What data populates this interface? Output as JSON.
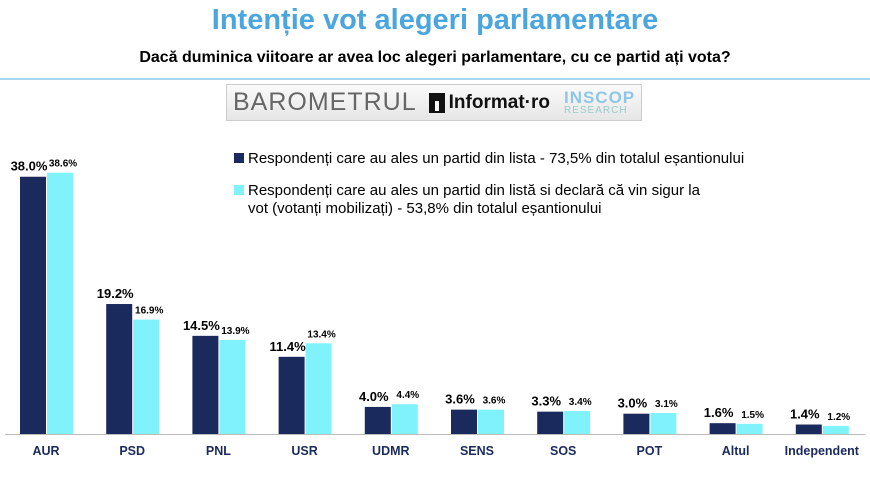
{
  "header": {
    "title": "Intenție vot alegeri parlamentare",
    "subtitle": "Dacă duminica viitoare ar avea loc alegeri parlamentare, cu ce partid ați vota?"
  },
  "logo": {
    "text1": "BAROMETRUL",
    "text2": "Informat·ro",
    "text3": "INSCOP",
    "text4": "RESEARCH"
  },
  "colors": {
    "series1": "#1b2a5c",
    "series2": "#80f2fb",
    "title": "#4ba6df"
  },
  "chart_data": {
    "type": "bar",
    "categories": [
      "AUR",
      "PSD",
      "PNL",
      "USR",
      "UDMR",
      "SENS",
      "SOS",
      "POT",
      "Altul",
      "Independent"
    ],
    "series": [
      {
        "name": "Respondenți care au ales un partid din lista - 73,5% din totalul eșantionului",
        "values": [
          38.0,
          19.2,
          14.5,
          11.4,
          4.0,
          3.6,
          3.3,
          3.0,
          1.6,
          1.4
        ]
      },
      {
        "name": "Respondenți care au ales un partid din listă si declară că vin sigur la vot (votanți mobilizați) - 53,8% din totalul eșantionului",
        "values": [
          38.6,
          16.9,
          13.9,
          13.4,
          4.4,
          3.6,
          3.4,
          3.1,
          1.5,
          1.2
        ]
      }
    ],
    "data_labels": [
      [
        "38.0%",
        "19.2%",
        "14.5%",
        "11.4%",
        "4.0%",
        "3.6%",
        "3.3%",
        "3.0%",
        "1.6%",
        "1.4%"
      ],
      [
        "38.6%",
        "16.9%",
        "13.9%",
        "13.4%",
        "4.4%",
        "3.6%",
        "3.4%",
        "3.1%",
        "1.5%",
        "1.2%"
      ]
    ],
    "legend": "top-right",
    "grid": false
  }
}
